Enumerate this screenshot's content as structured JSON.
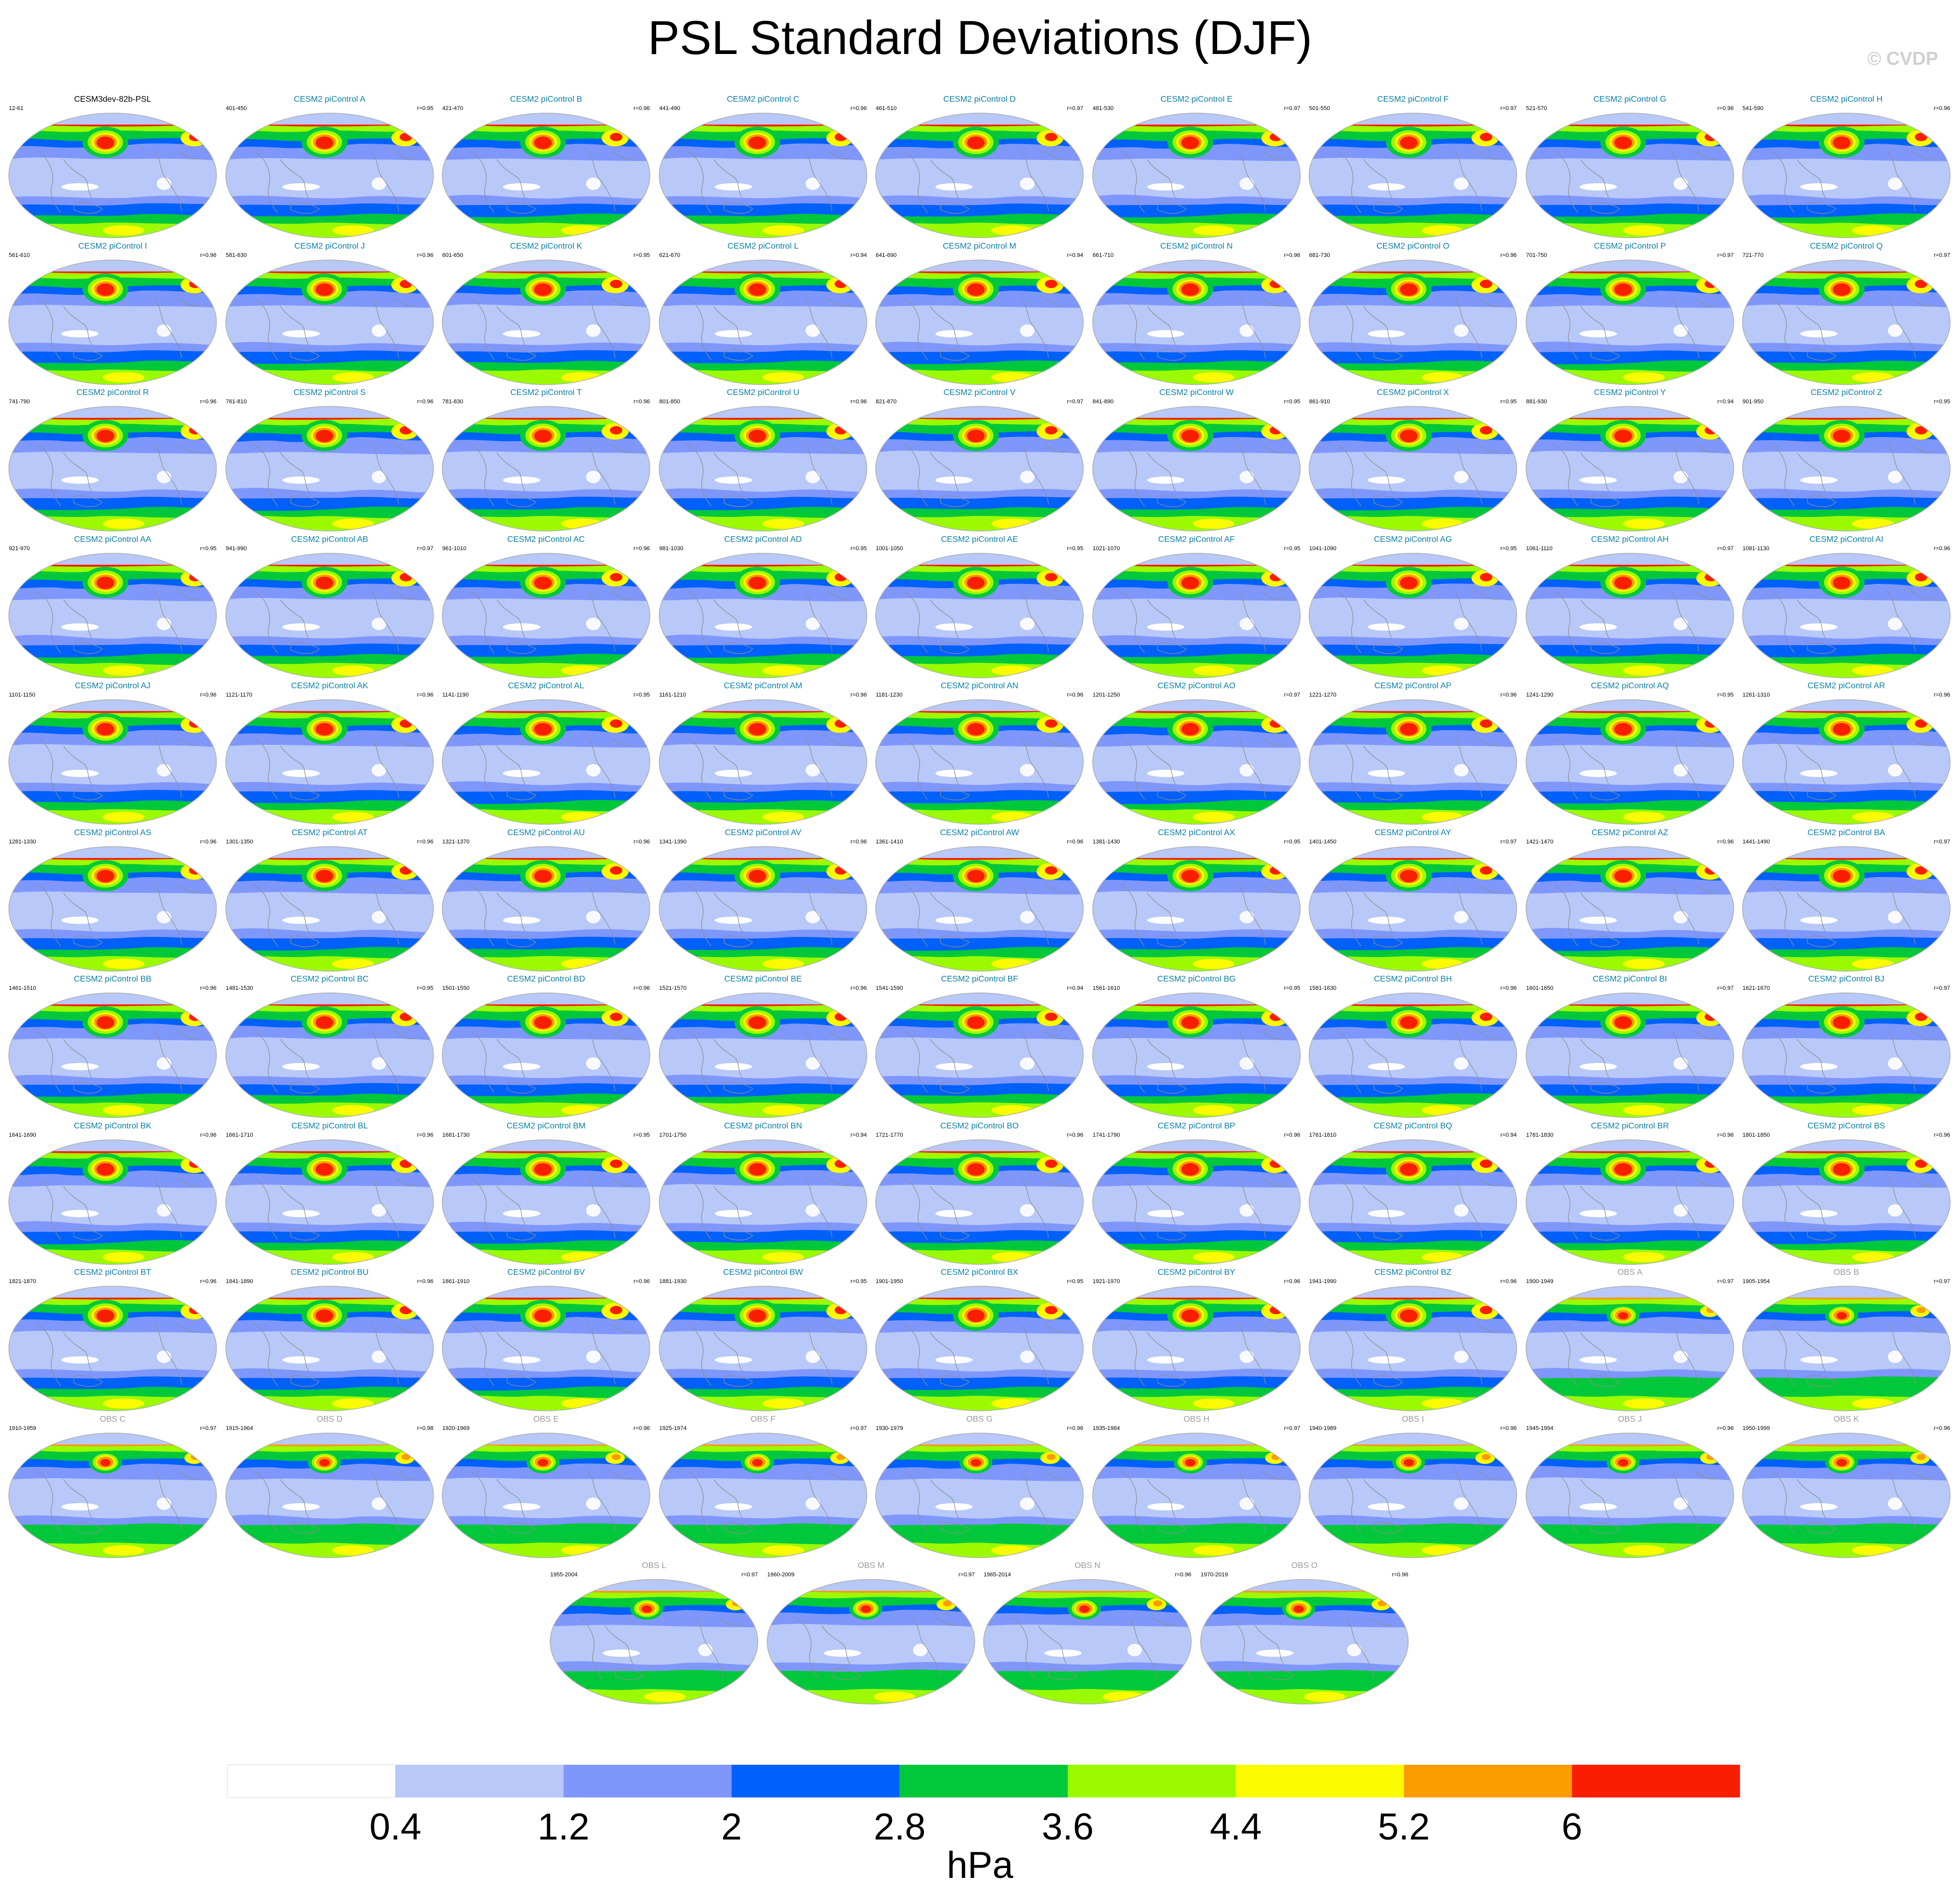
{
  "figure": {
    "title": "PSL Standard Deviations (DJF)",
    "copyright": "© CVDP"
  },
  "colors": {
    "levels": [
      "#ffffff",
      "#b8c8f8",
      "#7f96fb",
      "#0060fa",
      "#00c83a",
      "#9cfa00",
      "#fafa00",
      "#fa9c00",
      "#fa1e00"
    ],
    "land_outline": "#8f8f8f",
    "map_border": "#b0b0b0"
  },
  "colorbar": {
    "boundaries": [
      "0.4",
      "1.2",
      "2",
      "2.8",
      "3.6",
      "4.4",
      "5.2",
      "6"
    ],
    "unit": "hPa"
  },
  "panels": [
    {
      "title": "CESM3dev-82b-PSL",
      "years": "12-61",
      "corr": "",
      "kind": "first"
    },
    {
      "title": "CESM2 piControl A",
      "years": "401-450",
      "corr": "r=0.95",
      "kind": "model"
    },
    {
      "title": "CESM2 piControl B",
      "years": "421-470",
      "corr": "r=0.96",
      "kind": "model"
    },
    {
      "title": "CESM2 piControl C",
      "years": "441-490",
      "corr": "r=0.96",
      "kind": "model"
    },
    {
      "title": "CESM2 piControl D",
      "years": "461-510",
      "corr": "r=0.97",
      "kind": "model"
    },
    {
      "title": "CESM2 piControl E",
      "years": "481-530",
      "corr": "r=0.97",
      "kind": "model"
    },
    {
      "title": "CESM2 piControl F",
      "years": "501-550",
      "corr": "r=0.97",
      "kind": "model"
    },
    {
      "title": "CESM2 piControl G",
      "years": "521-570",
      "corr": "r=0.96",
      "kind": "model"
    },
    {
      "title": "CESM2 piControl H",
      "years": "541-590",
      "corr": "r=0.96",
      "kind": "model"
    },
    {
      "title": "CESM2 piControl I",
      "years": "561-610",
      "corr": "r=0.96",
      "kind": "model"
    },
    {
      "title": "CESM2 piControl J",
      "years": "581-630",
      "corr": "r=0.96",
      "kind": "model"
    },
    {
      "title": "CESM2 piControl K",
      "years": "601-650",
      "corr": "r=0.95",
      "kind": "model"
    },
    {
      "title": "CESM2 piControl L",
      "years": "621-670",
      "corr": "r=0.94",
      "kind": "model"
    },
    {
      "title": "CESM2 piControl M",
      "years": "641-690",
      "corr": "r=0.94",
      "kind": "model"
    },
    {
      "title": "CESM2 piControl N",
      "years": "661-710",
      "corr": "r=0.96",
      "kind": "model"
    },
    {
      "title": "CESM2 piControl O",
      "years": "681-730",
      "corr": "r=0.96",
      "kind": "model"
    },
    {
      "title": "CESM2 piControl P",
      "years": "701-750",
      "corr": "r=0.97",
      "kind": "model"
    },
    {
      "title": "CESM2 piControl Q",
      "years": "721-770",
      "corr": "r=0.97",
      "kind": "model"
    },
    {
      "title": "CESM2 piControl R",
      "years": "741-790",
      "corr": "r=0.96",
      "kind": "model"
    },
    {
      "title": "CESM2 piControl S",
      "years": "761-810",
      "corr": "r=0.96",
      "kind": "model"
    },
    {
      "title": "CESM2 piControl T",
      "years": "781-830",
      "corr": "r=0.96",
      "kind": "model"
    },
    {
      "title": "CESM2 piControl U",
      "years": "801-850",
      "corr": "r=0.96",
      "kind": "model"
    },
    {
      "title": "CESM2 piControl V",
      "years": "821-870",
      "corr": "r=0.97",
      "kind": "model"
    },
    {
      "title": "CESM2 piControl W",
      "years": "841-890",
      "corr": "r=0.95",
      "kind": "model"
    },
    {
      "title": "CESM2 piControl X",
      "years": "861-910",
      "corr": "r=0.95",
      "kind": "model"
    },
    {
      "title": "CESM2 piControl Y",
      "years": "881-930",
      "corr": "r=0.94",
      "kind": "model"
    },
    {
      "title": "CESM2 piControl Z",
      "years": "901-950",
      "corr": "r=0.95",
      "kind": "model"
    },
    {
      "title": "CESM2 piControl AA",
      "years": "921-970",
      "corr": "r=0.95",
      "kind": "model"
    },
    {
      "title": "CESM2 piControl AB",
      "years": "941-990",
      "corr": "r=0.97",
      "kind": "model"
    },
    {
      "title": "CESM2 piControl AC",
      "years": "961-1010",
      "corr": "r=0.96",
      "kind": "model"
    },
    {
      "title": "CESM2 piControl AD",
      "years": "981-1030",
      "corr": "r=0.95",
      "kind": "model"
    },
    {
      "title": "CESM2 piControl AE",
      "years": "1001-1050",
      "corr": "r=0.95",
      "kind": "model"
    },
    {
      "title": "CESM2 piControl AF",
      "years": "1021-1070",
      "corr": "r=0.95",
      "kind": "model"
    },
    {
      "title": "CESM2 piControl AG",
      "years": "1041-1090",
      "corr": "r=0.95",
      "kind": "model"
    },
    {
      "title": "CESM2 piControl AH",
      "years": "1061-1110",
      "corr": "r=0.97",
      "kind": "model"
    },
    {
      "title": "CESM2 piControl AI",
      "years": "1081-1130",
      "corr": "r=0.96",
      "kind": "model"
    },
    {
      "title": "CESM2 piControl AJ",
      "years": "1101-1150",
      "corr": "r=0.96",
      "kind": "model"
    },
    {
      "title": "CESM2 piControl AK",
      "years": "1121-1170",
      "corr": "r=0.96",
      "kind": "model"
    },
    {
      "title": "CESM2 piControl AL",
      "years": "1141-1190",
      "corr": "r=0.95",
      "kind": "model"
    },
    {
      "title": "CESM2 piControl AM",
      "years": "1161-1210",
      "corr": "r=0.96",
      "kind": "model"
    },
    {
      "title": "CESM2 piControl AN",
      "years": "1181-1230",
      "corr": "r=0.96",
      "kind": "model"
    },
    {
      "title": "CESM2 piControl AO",
      "years": "1201-1250",
      "corr": "r=0.97",
      "kind": "model"
    },
    {
      "title": "CESM2 piControl AP",
      "years": "1221-1270",
      "corr": "r=0.96",
      "kind": "model"
    },
    {
      "title": "CESM2 piControl AQ",
      "years": "1241-1290",
      "corr": "r=0.95",
      "kind": "model"
    },
    {
      "title": "CESM2 piControl AR",
      "years": "1261-1310",
      "corr": "r=0.96",
      "kind": "model"
    },
    {
      "title": "CESM2 piControl AS",
      "years": "1281-1330",
      "corr": "r=0.96",
      "kind": "model"
    },
    {
      "title": "CESM2 piControl AT",
      "years": "1301-1350",
      "corr": "r=0.96",
      "kind": "model"
    },
    {
      "title": "CESM2 piControl AU",
      "years": "1321-1370",
      "corr": "r=0.96",
      "kind": "model"
    },
    {
      "title": "CESM2 piControl AV",
      "years": "1341-1390",
      "corr": "r=0.96",
      "kind": "model"
    },
    {
      "title": "CESM2 piControl AW",
      "years": "1361-1410",
      "corr": "r=0.96",
      "kind": "model"
    },
    {
      "title": "CESM2 piControl AX",
      "years": "1381-1430",
      "corr": "r=0.95",
      "kind": "model"
    },
    {
      "title": "CESM2 piControl AY",
      "years": "1401-1450",
      "corr": "r=0.97",
      "kind": "model"
    },
    {
      "title": "CESM2 piControl AZ",
      "years": "1421-1470",
      "corr": "r=0.96",
      "kind": "model"
    },
    {
      "title": "CESM2 piControl BA",
      "years": "1441-1490",
      "corr": "r=0.97",
      "kind": "model"
    },
    {
      "title": "CESM2 piControl BB",
      "years": "1461-1510",
      "corr": "r=0.96",
      "kind": "model"
    },
    {
      "title": "CESM2 piControl BC",
      "years": "1481-1530",
      "corr": "r=0.95",
      "kind": "model"
    },
    {
      "title": "CESM2 piControl BD",
      "years": "1501-1550",
      "corr": "r=0.96",
      "kind": "model"
    },
    {
      "title": "CESM2 piControl BE",
      "years": "1521-1570",
      "corr": "r=0.96",
      "kind": "model"
    },
    {
      "title": "CESM2 piControl BF",
      "years": "1541-1590",
      "corr": "r=0.94",
      "kind": "model"
    },
    {
      "title": "CESM2 piControl BG",
      "years": "1561-1610",
      "corr": "r=0.95",
      "kind": "model"
    },
    {
      "title": "CESM2 piControl BH",
      "years": "1581-1630",
      "corr": "r=0.96",
      "kind": "model"
    },
    {
      "title": "CESM2 piControl BI",
      "years": "1601-1650",
      "corr": "r=0.97",
      "kind": "model"
    },
    {
      "title": "CESM2 piControl BJ",
      "years": "1621-1670",
      "corr": "r=0.97",
      "kind": "model"
    },
    {
      "title": "CESM2 piControl BK",
      "years": "1641-1690",
      "corr": "r=0.96",
      "kind": "model"
    },
    {
      "title": "CESM2 piControl BL",
      "years": "1661-1710",
      "corr": "r=0.96",
      "kind": "model"
    },
    {
      "title": "CESM2 piControl BM",
      "years": "1681-1730",
      "corr": "r=0.95",
      "kind": "model"
    },
    {
      "title": "CESM2 piControl BN",
      "years": "1701-1750",
      "corr": "r=0.94",
      "kind": "model"
    },
    {
      "title": "CESM2 piControl BO",
      "years": "1721-1770",
      "corr": "r=0.96",
      "kind": "model"
    },
    {
      "title": "CESM2 piControl BP",
      "years": "1741-1790",
      "corr": "r=0.96",
      "kind": "model"
    },
    {
      "title": "CESM2 piControl BQ",
      "years": "1761-1810",
      "corr": "r=0.94",
      "kind": "model"
    },
    {
      "title": "CESM2 piControl BR",
      "years": "1781-1830",
      "corr": "r=0.96",
      "kind": "model"
    },
    {
      "title": "CESM2 piControl BS",
      "years": "1801-1850",
      "corr": "r=0.96",
      "kind": "model"
    },
    {
      "title": "CESM2 piControl BT",
      "years": "1821-1870",
      "corr": "r=0.96",
      "kind": "model"
    },
    {
      "title": "CESM2 piControl BU",
      "years": "1841-1890",
      "corr": "r=0.96",
      "kind": "model"
    },
    {
      "title": "CESM2 piControl BV",
      "years": "1861-1910",
      "corr": "r=0.96",
      "kind": "model"
    },
    {
      "title": "CESM2 piControl BW",
      "years": "1881-1930",
      "corr": "r=0.95",
      "kind": "model"
    },
    {
      "title": "CESM2 piControl BX",
      "years": "1901-1950",
      "corr": "r=0.95",
      "kind": "model"
    },
    {
      "title": "CESM2 piControl BY",
      "years": "1921-1970",
      "corr": "r=0.96",
      "kind": "model"
    },
    {
      "title": "CESM2 piControl BZ",
      "years": "1941-1990",
      "corr": "r=0.96",
      "kind": "model"
    },
    {
      "title": "OBS A",
      "years": "1900-1949",
      "corr": "r=0.97",
      "kind": "obs"
    },
    {
      "title": "OBS B",
      "years": "1905-1954",
      "corr": "r=0.97",
      "kind": "obs"
    },
    {
      "title": "OBS C",
      "years": "1910-1959",
      "corr": "r=0.97",
      "kind": "obs"
    },
    {
      "title": "OBS D",
      "years": "1915-1964",
      "corr": "r=0.98",
      "kind": "obs"
    },
    {
      "title": "OBS E",
      "years": "1920-1969",
      "corr": "r=0.96",
      "kind": "obs"
    },
    {
      "title": "OBS F",
      "years": "1925-1974",
      "corr": "r=0.97",
      "kind": "obs"
    },
    {
      "title": "OBS G",
      "years": "1930-1979",
      "corr": "r=0.96",
      "kind": "obs"
    },
    {
      "title": "OBS H",
      "years": "1935-1984",
      "corr": "r=0.97",
      "kind": "obs"
    },
    {
      "title": "OBS I",
      "years": "1940-1989",
      "corr": "r=0.96",
      "kind": "obs"
    },
    {
      "title": "OBS J",
      "years": "1945-1994",
      "corr": "r=0.96",
      "kind": "obs"
    },
    {
      "title": "OBS K",
      "years": "1950-1999",
      "corr": "r=0.96",
      "kind": "obs"
    },
    {
      "title": "OBS L",
      "years": "1955-2004",
      "corr": "r=0.97",
      "kind": "obs"
    },
    {
      "title": "OBS M",
      "years": "1960-2009",
      "corr": "r=0.97",
      "kind": "obs"
    },
    {
      "title": "OBS N",
      "years": "1965-2014",
      "corr": "r=0.96",
      "kind": "obs"
    },
    {
      "title": "OBS O",
      "years": "1970-2019",
      "corr": "r=0.96",
      "kind": "obs"
    }
  ],
  "chart_data": {
    "type": "heatmap",
    "title": "PSL Standard Deviations (DJF)",
    "variable": "PSL standard deviation",
    "season": "DJF",
    "unit": "hPa",
    "contour_levels": [
      0.4,
      1.2,
      2,
      2.8,
      3.6,
      4.4,
      5.2,
      6
    ],
    "panel_count": 94,
    "layout": "grid of robinson-projection world maps, 9 per row, final row centered",
    "xlabel": "",
    "ylabel": ""
  }
}
